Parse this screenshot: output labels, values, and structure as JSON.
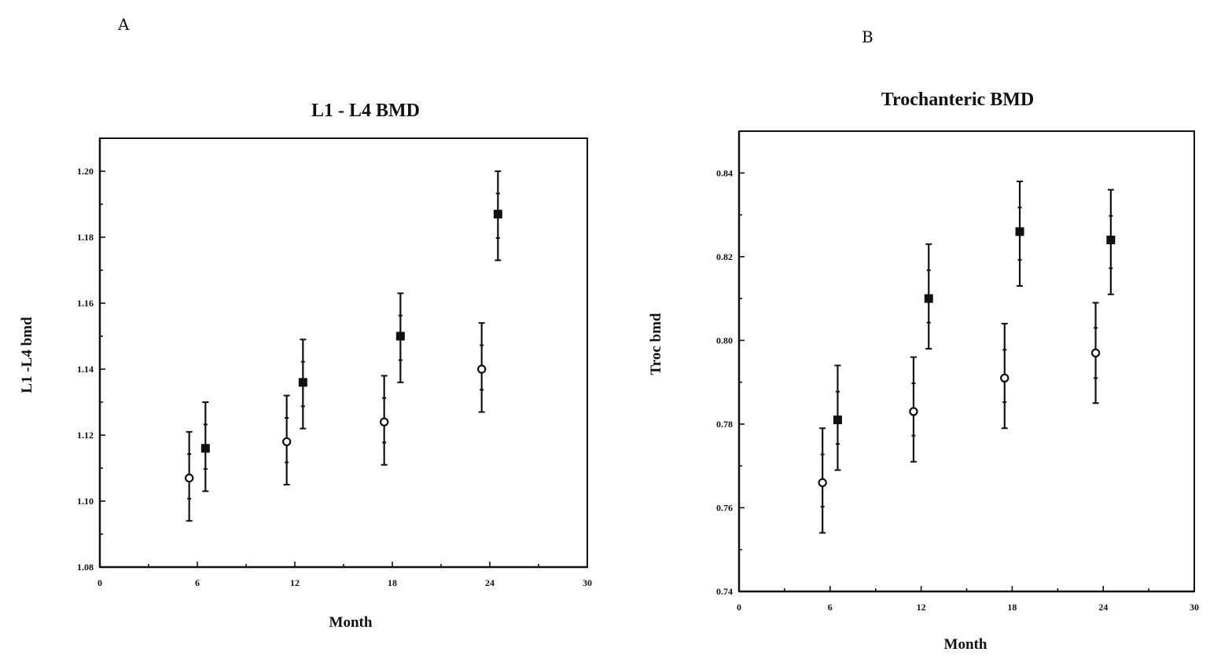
{
  "chart_data": [
    {
      "type": "scatter",
      "panel_label": "A",
      "title": "L1 - L4  BMD",
      "xlabel": "Month",
      "ylabel": "L1 -L4 bmd",
      "xlim": [
        0,
        30
      ],
      "ylim": [
        1.08,
        1.21
      ],
      "xticks": [
        "0",
        "6",
        "12",
        "18",
        "24",
        "30"
      ],
      "yticks": [
        "1.08",
        "1.10",
        "1.12",
        "1.14",
        "1.16",
        "1.18",
        "1.20"
      ],
      "grid": false,
      "series": [
        {
          "marker": "open-circle",
          "points": [
            {
              "x": 5.5,
              "y": 1.107,
              "low": 1.094,
              "high": 1.121
            },
            {
              "x": 11.5,
              "y": 1.118,
              "low": 1.105,
              "high": 1.132
            },
            {
              "x": 17.5,
              "y": 1.124,
              "low": 1.111,
              "high": 1.138
            },
            {
              "x": 23.5,
              "y": 1.14,
              "low": 1.127,
              "high": 1.154
            }
          ]
        },
        {
          "marker": "filled-square",
          "points": [
            {
              "x": 6.5,
              "y": 1.116,
              "low": 1.103,
              "high": 1.13
            },
            {
              "x": 12.5,
              "y": 1.136,
              "low": 1.122,
              "high": 1.149
            },
            {
              "x": 18.5,
              "y": 1.15,
              "low": 1.136,
              "high": 1.163
            },
            {
              "x": 24.5,
              "y": 1.187,
              "low": 1.173,
              "high": 1.2
            }
          ]
        }
      ]
    },
    {
      "type": "scatter",
      "panel_label": "B",
      "title": "Trochanteric BMD",
      "xlabel": "Month",
      "ylabel": "Troc bmd",
      "xlim": [
        0,
        30
      ],
      "ylim": [
        0.74,
        0.85
      ],
      "xticks": [
        "0",
        "6",
        "12",
        "18",
        "24",
        "30"
      ],
      "yticks": [
        "0.74",
        "0.76",
        "0.78",
        "0.80",
        "0.82",
        "0.84"
      ],
      "grid": false,
      "series": [
        {
          "marker": "open-circle",
          "points": [
            {
              "x": 5.5,
              "y": 0.766,
              "low": 0.754,
              "high": 0.779
            },
            {
              "x": 11.5,
              "y": 0.783,
              "low": 0.771,
              "high": 0.796
            },
            {
              "x": 17.5,
              "y": 0.791,
              "low": 0.779,
              "high": 0.804
            },
            {
              "x": 23.5,
              "y": 0.797,
              "low": 0.785,
              "high": 0.809
            }
          ]
        },
        {
          "marker": "filled-square",
          "points": [
            {
              "x": 6.5,
              "y": 0.781,
              "low": 0.769,
              "high": 0.794
            },
            {
              "x": 12.5,
              "y": 0.81,
              "low": 0.798,
              "high": 0.823
            },
            {
              "x": 18.5,
              "y": 0.826,
              "low": 0.813,
              "high": 0.838
            },
            {
              "x": 24.5,
              "y": 0.824,
              "low": 0.811,
              "high": 0.836
            }
          ]
        }
      ]
    }
  ]
}
